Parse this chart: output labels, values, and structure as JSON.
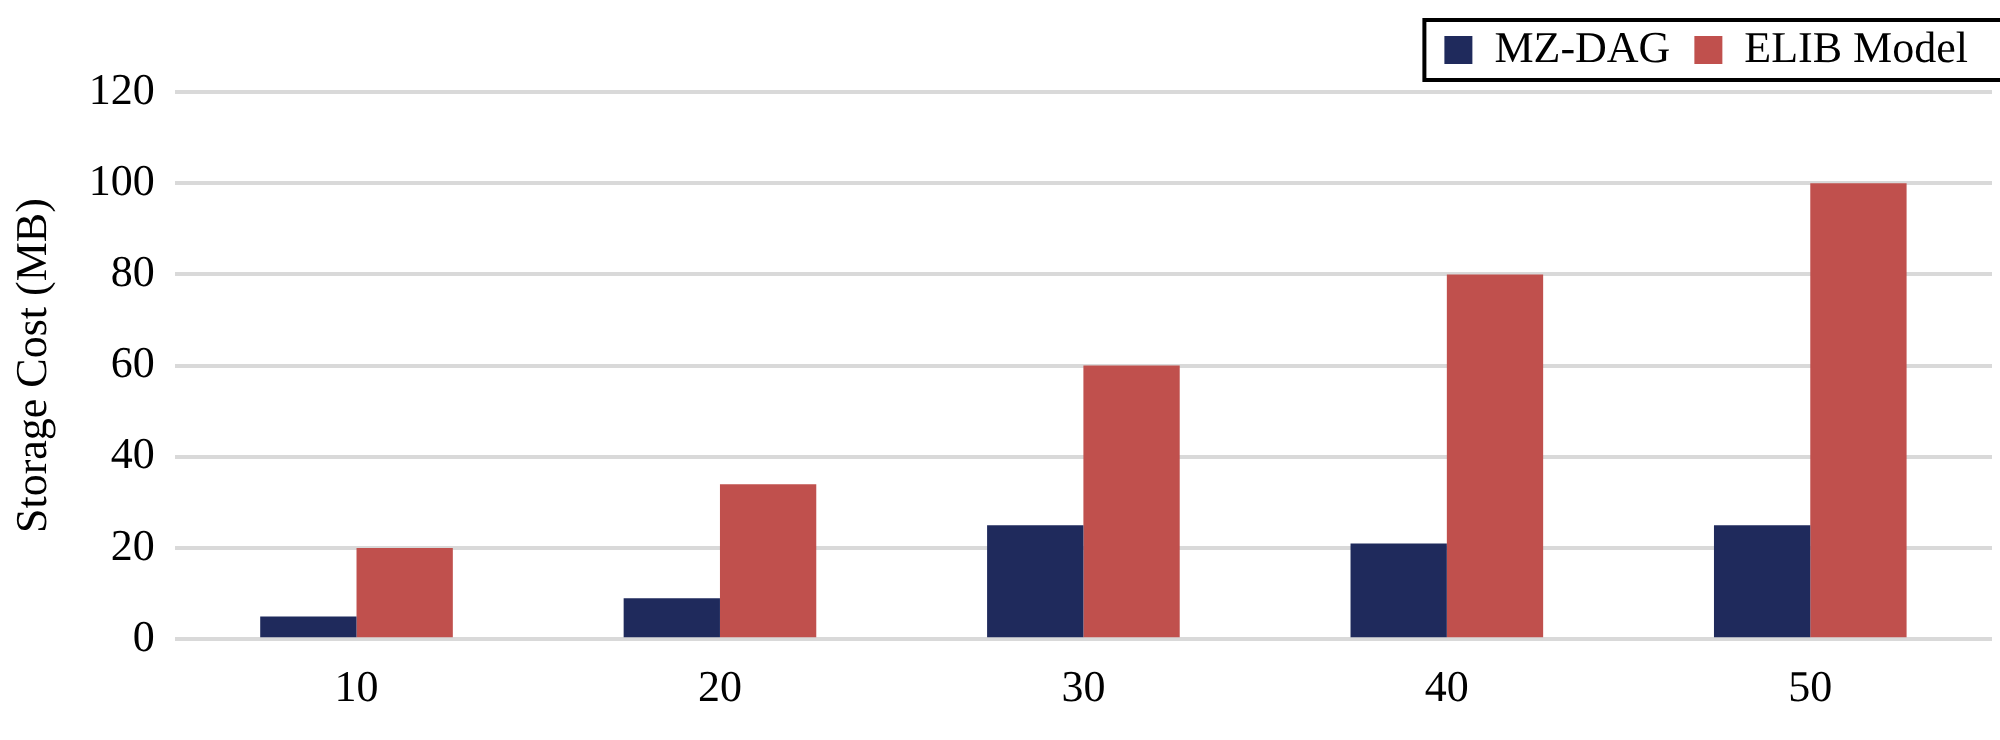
{
  "chart_data": {
    "type": "bar",
    "ylabel": "Storage Cost (MB)",
    "categories": [
      "10",
      "20",
      "30",
      "40",
      "50"
    ],
    "series": [
      {
        "name": "MZ-DAG",
        "color": "#1f2a5c",
        "values": [
          5,
          9,
          25,
          21,
          25
        ]
      },
      {
        "name": "ELIB Model",
        "color": "#c0504d",
        "values": [
          20,
          34,
          60,
          80,
          100
        ]
      }
    ],
    "ylim": [
      0,
      120
    ],
    "yticks": [
      0,
      20,
      40,
      60,
      80,
      100,
      120
    ],
    "grid": "y",
    "legend": "top right"
  }
}
